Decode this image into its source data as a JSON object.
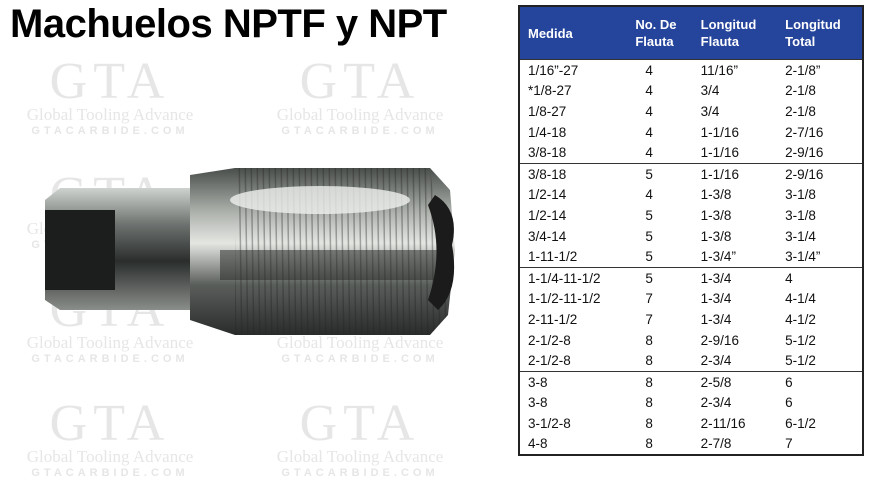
{
  "title": "Machuelos NPTF y NPT",
  "watermark": {
    "logo": "GTA",
    "name": "Global Tooling Advance",
    "site": "GTACARBIDE.COM"
  },
  "colors": {
    "header_bg": "#25449b",
    "header_text": "#ffffff"
  },
  "table": {
    "headers": [
      [
        "Medida"
      ],
      [
        "No. De",
        "Flauta"
      ],
      [
        "Longitud",
        "Flauta"
      ],
      [
        "Longitud",
        "Total"
      ]
    ],
    "groups": [
      [
        [
          "1/16”-27",
          "4",
          "11/16”",
          "2-1/8”"
        ],
        [
          "*1/8-27",
          "4",
          "3/4",
          "2-1/8"
        ],
        [
          "1/8-27",
          "4",
          "3/4",
          "2-1/8"
        ],
        [
          "1/4-18",
          "4",
          "1-1/16",
          "2-7/16"
        ],
        [
          "3/8-18",
          "4",
          "1-1/16",
          "2-9/16"
        ]
      ],
      [
        [
          "3/8-18",
          "5",
          "1-1/16",
          "2-9/16"
        ],
        [
          "1/2-14",
          "4",
          "1-3/8",
          "3-1/8"
        ],
        [
          "1/2-14",
          "5",
          "1-3/8",
          "3-1/8"
        ],
        [
          "3/4-14",
          "5",
          "1-3/8",
          "3-1/4"
        ],
        [
          "1-11-1/2",
          "5",
          "1-3/4”",
          "3-1/4”"
        ]
      ],
      [
        [
          "1-1/4-11-1/2",
          "5",
          "1-3/4",
          "4"
        ],
        [
          "1-1/2-11-1/2",
          "7",
          "1-3/4",
          "4-1/4"
        ],
        [
          "2-11-1/2",
          "7",
          "1-3/4",
          "4-1/2"
        ],
        [
          "2-1/2-8",
          "8",
          "2-9/16",
          "5-1/2"
        ],
        [
          "2-1/2-8",
          "8",
          "2-3/4",
          "5-1/2"
        ]
      ],
      [
        [
          "3-8",
          "8",
          "2-5/8",
          "6"
        ],
        [
          "3-8",
          "8",
          "2-3/4",
          "6"
        ],
        [
          "3-1/2-8",
          "8",
          "2-11/16",
          "6-1/2"
        ],
        [
          "4-8",
          "8",
          "2-7/8",
          "7"
        ]
      ]
    ]
  }
}
